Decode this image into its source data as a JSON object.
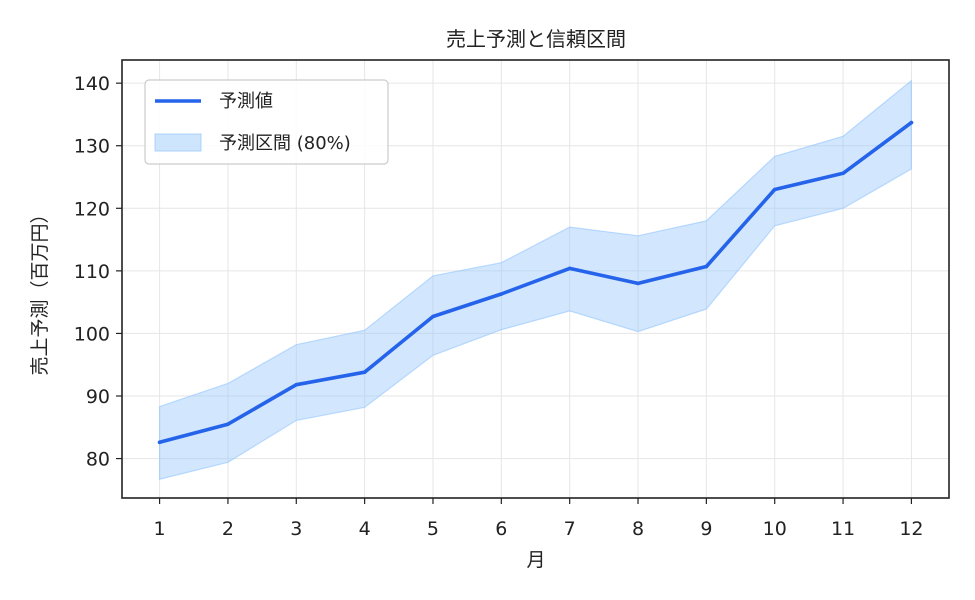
{
  "chart_data": {
    "type": "line",
    "title": "売上予測と信頼区間",
    "xlabel": "月",
    "ylabel": "売上予測（百万円）",
    "x": [
      1,
      2,
      3,
      4,
      5,
      6,
      7,
      8,
      9,
      10,
      11,
      12
    ],
    "x_tick_labels": [
      "1",
      "2",
      "3",
      "4",
      "5",
      "6",
      "7",
      "8",
      "9",
      "10",
      "11",
      "12"
    ],
    "y_ticks": [
      80,
      90,
      100,
      110,
      120,
      130,
      140
    ],
    "y_tick_labels": [
      "80",
      "90",
      "100",
      "110",
      "120",
      "130",
      "140"
    ],
    "xlim": [
      0.45,
      12.55
    ],
    "ylim": [
      73.7,
      143.7
    ],
    "grid": true,
    "legend_position": "upper-left",
    "series": [
      {
        "name": "予測値",
        "type": "line",
        "color": "#2563eb",
        "values": [
          82.6,
          85.5,
          91.8,
          93.8,
          102.7,
          106.3,
          110.4,
          108.0,
          110.7,
          123.0,
          125.6,
          133.7
        ]
      },
      {
        "name": "予測区間 (80%)",
        "type": "band",
        "color": "#93c5fd",
        "lower": [
          76.7,
          79.4,
          86.1,
          88.2,
          96.5,
          100.6,
          103.6,
          100.3,
          103.9,
          117.2,
          120.0,
          126.3
        ],
        "upper": [
          88.3,
          92.0,
          98.2,
          100.5,
          109.2,
          111.3,
          117.0,
          115.6,
          118.0,
          128.3,
          131.5,
          140.4
        ]
      }
    ]
  }
}
